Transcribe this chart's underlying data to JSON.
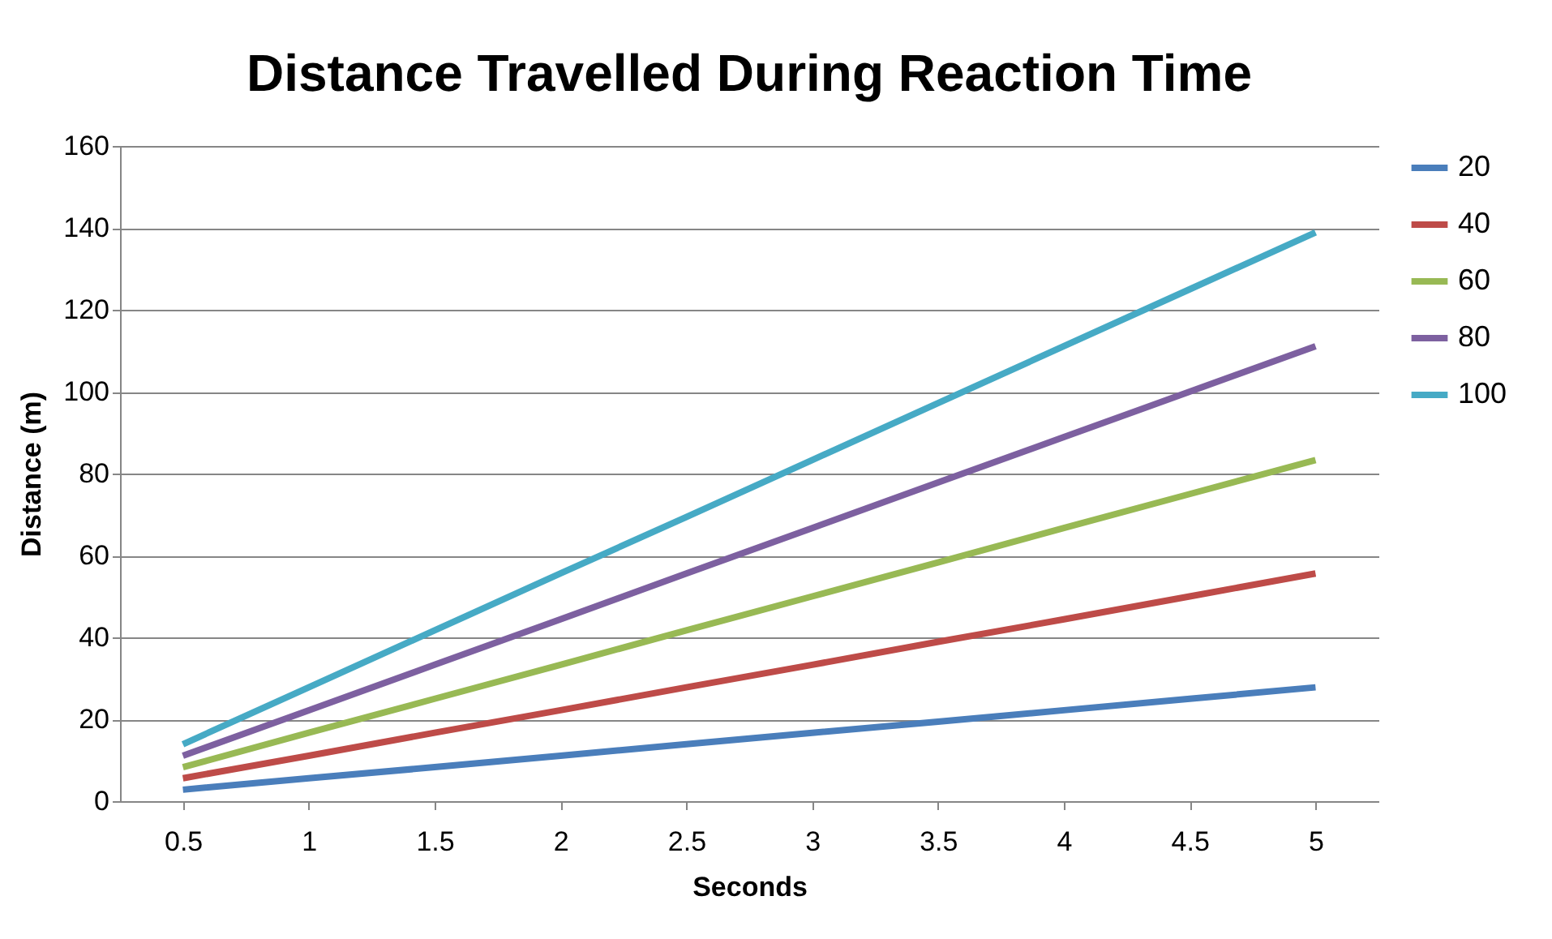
{
  "chart_data": {
    "type": "line",
    "title": "Distance Travelled During Reaction Time",
    "xlabel": "Seconds",
    "ylabel": "Distance (m)",
    "categories": [
      "0.5",
      "1",
      "1.5",
      "2",
      "2.5",
      "3",
      "3.5",
      "4",
      "4.5",
      "5"
    ],
    "series": [
      {
        "name": "20",
        "color": "#4a7ebb",
        "values": [
          2.8,
          5.6,
          8.3,
          11.1,
          13.9,
          16.7,
          19.4,
          22.2,
          25.0,
          27.8
        ]
      },
      {
        "name": "40",
        "color": "#be4b48",
        "values": [
          5.6,
          11.1,
          16.7,
          22.2,
          27.8,
          33.3,
          38.9,
          44.4,
          50.0,
          55.6
        ]
      },
      {
        "name": "60",
        "color": "#98b954",
        "values": [
          8.3,
          16.7,
          25.0,
          33.3,
          41.7,
          50.0,
          58.3,
          66.7,
          75.0,
          83.3
        ]
      },
      {
        "name": "80",
        "color": "#7d60a0",
        "values": [
          11.1,
          22.2,
          33.3,
          44.4,
          55.6,
          66.7,
          77.8,
          88.9,
          100.0,
          111.1
        ]
      },
      {
        "name": "100",
        "color": "#46aac5",
        "values": [
          13.9,
          27.8,
          41.7,
          55.6,
          69.4,
          83.3,
          97.2,
          111.1,
          125.0,
          138.9
        ]
      }
    ],
    "ylim": [
      0,
      160
    ],
    "yticks": [
      0,
      20,
      40,
      60,
      80,
      100,
      120,
      140,
      160
    ],
    "grid": "y",
    "legend": "right",
    "marker": "none",
    "line_style": "solid"
  }
}
